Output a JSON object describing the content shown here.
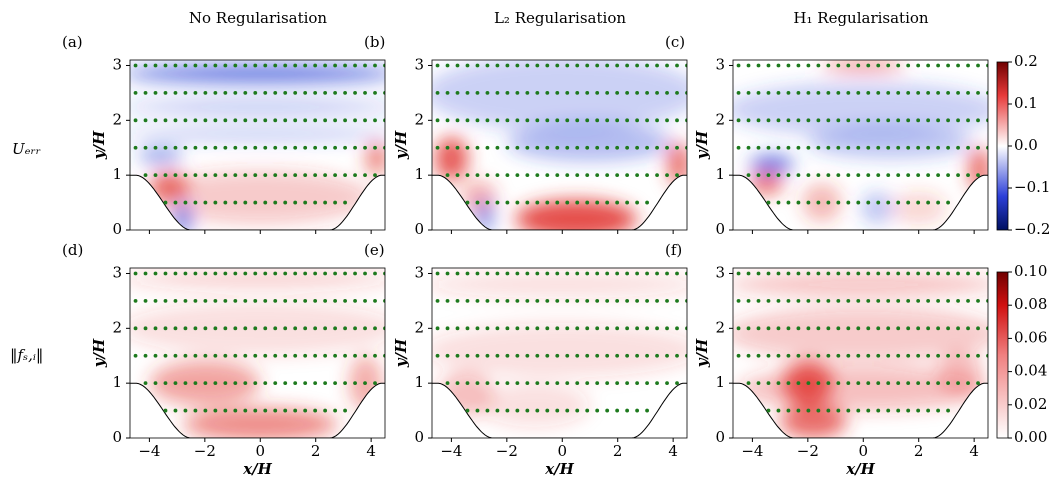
{
  "column_titles": [
    "No Regularisation",
    "L₂ Regularisation",
    "H₁ Regularisation"
  ],
  "row_labels": [
    "Uₑᵣᵣ",
    "‖fₛ,ᵢ‖"
  ],
  "chart_data": [
    {
      "type": "heatmap",
      "panel_label": "(a)",
      "ylabel": "y/H",
      "xlim": [
        -4.7,
        4.5
      ],
      "ylim": [
        0,
        3.1
      ],
      "xticks": [
        -4,
        -2,
        0,
        2,
        4
      ],
      "yticks": [
        0,
        1,
        2,
        3
      ]
    },
    {
      "type": "heatmap",
      "panel_label": "(b)",
      "ylabel": "y/H",
      "xlim": [
        -4.7,
        4.5
      ],
      "ylim": [
        0,
        3.1
      ],
      "xticks": [
        -4,
        -2,
        0,
        2,
        4
      ],
      "yticks": [
        0,
        1,
        2,
        3
      ]
    },
    {
      "type": "heatmap",
      "panel_label": "(c)",
      "ylabel": "y/H",
      "xlim": [
        -4.7,
        4.5
      ],
      "ylim": [
        0,
        3.1
      ],
      "xticks": [
        -4,
        -2,
        0,
        2,
        4
      ],
      "yticks": [
        0,
        1,
        2,
        3
      ]
    },
    {
      "type": "heatmap",
      "panel_label": "(d)",
      "xlabel": "x/H",
      "ylabel": "y/H",
      "xlim": [
        -4.7,
        4.5
      ],
      "ylim": [
        0,
        3.1
      ],
      "xticks": [
        {
          "value": -4,
          "label": "−4"
        },
        {
          "value": -2,
          "label": "−2"
        },
        0,
        2,
        4
      ],
      "yticks": [
        0,
        1,
        2,
        3
      ]
    },
    {
      "type": "heatmap",
      "panel_label": "(e)",
      "xlabel": "x/H",
      "ylabel": "y/H",
      "xlim": [
        -4.7,
        4.5
      ],
      "ylim": [
        0,
        3.1
      ],
      "xticks": [
        {
          "value": -4,
          "label": "−4"
        },
        {
          "value": -2,
          "label": "−2"
        },
        0,
        2,
        4
      ],
      "yticks": [
        0,
        1,
        2,
        3
      ]
    },
    {
      "type": "heatmap",
      "panel_label": "(f)",
      "xlabel": "x/H",
      "ylabel": "y/H",
      "xlim": [
        -4.7,
        4.5
      ],
      "ylim": [
        0,
        3.1
      ],
      "xticks": [
        {
          "value": -4,
          "label": "−4"
        },
        {
          "value": -2,
          "label": "−2"
        },
        0,
        2,
        4
      ],
      "yticks": [
        0,
        1,
        2,
        3
      ]
    }
  ],
  "colorbars": [
    {
      "lim": [
        -0.2,
        0.2
      ],
      "ticks": [
        {
          "value": -0.2,
          "label": "−0.2"
        },
        {
          "value": -0.1,
          "label": "−0.1"
        },
        {
          "value": 0,
          "label": "0.0"
        },
        0.1,
        0.2
      ]
    },
    {
      "lim": [
        0,
        0.1
      ],
      "ticks": [
        {
          "value": 0,
          "label": "0.00"
        },
        {
          "value": 0.02,
          "label": "0.02"
        },
        {
          "value": 0.04,
          "label": "0.04"
        },
        {
          "value": 0.06,
          "label": "0.06"
        },
        {
          "value": 0.08,
          "label": "0.08"
        },
        {
          "value": 0.1,
          "label": "0.10"
        }
      ]
    }
  ]
}
